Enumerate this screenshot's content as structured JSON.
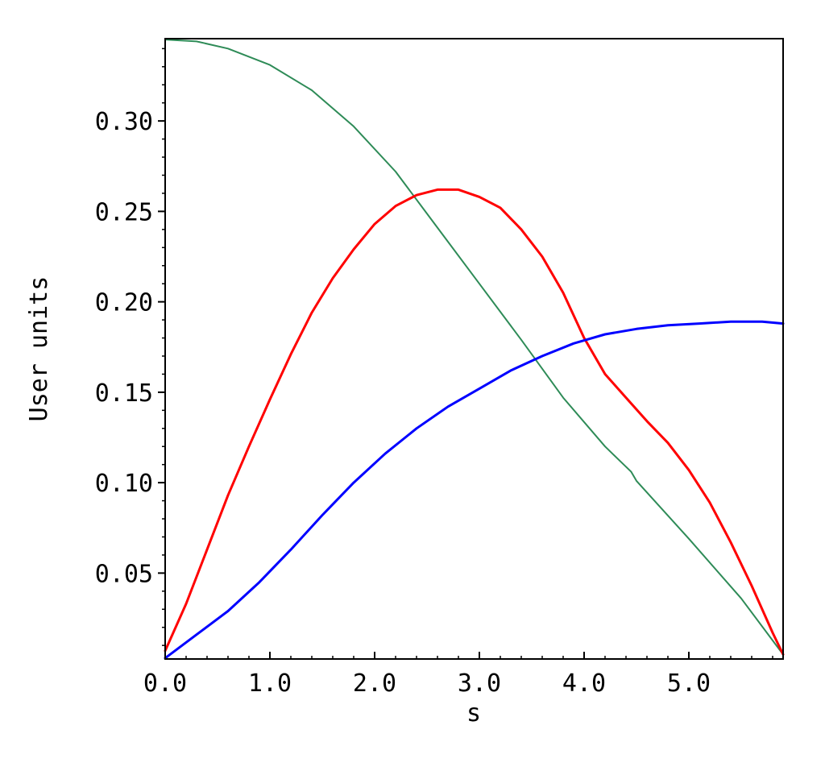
{
  "chart_data": {
    "type": "line",
    "title": "",
    "xlabel": "s",
    "ylabel": "User units",
    "xlim": [
      0,
      5.9
    ],
    "ylim": [
      0.0025,
      0.3455
    ],
    "grid": false,
    "legend": "none",
    "x_ticks": [
      {
        "value": 0,
        "label": "0.0"
      },
      {
        "value": 1,
        "label": "1.0"
      },
      {
        "value": 2,
        "label": "2.0"
      },
      {
        "value": 3,
        "label": "3.0"
      },
      {
        "value": 4,
        "label": "4.0"
      },
      {
        "value": 5,
        "label": "5.0"
      }
    ],
    "y_ticks": [
      {
        "value": 0.05,
        "label": "0.05"
      },
      {
        "value": 0.1,
        "label": "0.10"
      },
      {
        "value": 0.15,
        "label": "0.15"
      },
      {
        "value": 0.2,
        "label": "0.20"
      },
      {
        "value": 0.25,
        "label": "0.25"
      },
      {
        "value": 0.3,
        "label": "0.30"
      }
    ],
    "x_minor_step": 0.2,
    "y_minor_step": 0.01,
    "series": [
      {
        "color": "#2e8b57",
        "points": [
          [
            0,
            0.345
          ],
          [
            0.3,
            0.344
          ],
          [
            0.6,
            0.34
          ],
          [
            1.0,
            0.331
          ],
          [
            1.4,
            0.317
          ],
          [
            1.8,
            0.297
          ],
          [
            2.2,
            0.272
          ],
          [
            2.6,
            0.241
          ],
          [
            3.0,
            0.21
          ],
          [
            3.4,
            0.179
          ],
          [
            3.8,
            0.147
          ],
          [
            4.2,
            0.12
          ],
          [
            4.45,
            0.106
          ],
          [
            4.5,
            0.101
          ],
          [
            5.0,
            0.069
          ],
          [
            5.5,
            0.036
          ],
          [
            5.9,
            0.005
          ]
        ]
      },
      {
        "color": "#ff0000",
        "points": [
          [
            0,
            0.007
          ],
          [
            0.2,
            0.033
          ],
          [
            0.4,
            0.063
          ],
          [
            0.6,
            0.093
          ],
          [
            0.8,
            0.12
          ],
          [
            1.0,
            0.146
          ],
          [
            1.2,
            0.171
          ],
          [
            1.4,
            0.194
          ],
          [
            1.6,
            0.213
          ],
          [
            1.8,
            0.229
          ],
          [
            2.0,
            0.243
          ],
          [
            2.2,
            0.253
          ],
          [
            2.4,
            0.259
          ],
          [
            2.6,
            0.262
          ],
          [
            2.8,
            0.262
          ],
          [
            3.0,
            0.258
          ],
          [
            3.2,
            0.252
          ],
          [
            3.4,
            0.24
          ],
          [
            3.6,
            0.225
          ],
          [
            3.8,
            0.205
          ],
          [
            4.0,
            0.18
          ],
          [
            4.2,
            0.16
          ],
          [
            4.4,
            0.147
          ],
          [
            4.6,
            0.134
          ],
          [
            4.8,
            0.122
          ],
          [
            5.0,
            0.107
          ],
          [
            5.2,
            0.089
          ],
          [
            5.4,
            0.067
          ],
          [
            5.6,
            0.043
          ],
          [
            5.8,
            0.017
          ],
          [
            5.9,
            0.005
          ]
        ]
      },
      {
        "color": "#0000ff",
        "points": [
          [
            0,
            0.003
          ],
          [
            0.3,
            0.016
          ],
          [
            0.6,
            0.029
          ],
          [
            0.9,
            0.045
          ],
          [
            1.2,
            0.063
          ],
          [
            1.5,
            0.082
          ],
          [
            1.8,
            0.1
          ],
          [
            2.1,
            0.116
          ],
          [
            2.4,
            0.13
          ],
          [
            2.7,
            0.142
          ],
          [
            3.0,
            0.152
          ],
          [
            3.3,
            0.162
          ],
          [
            3.6,
            0.17
          ],
          [
            3.9,
            0.177
          ],
          [
            4.2,
            0.182
          ],
          [
            4.5,
            0.185
          ],
          [
            4.8,
            0.187
          ],
          [
            5.1,
            0.188
          ],
          [
            5.4,
            0.189
          ],
          [
            5.7,
            0.189
          ],
          [
            5.9,
            0.188
          ]
        ]
      }
    ]
  }
}
